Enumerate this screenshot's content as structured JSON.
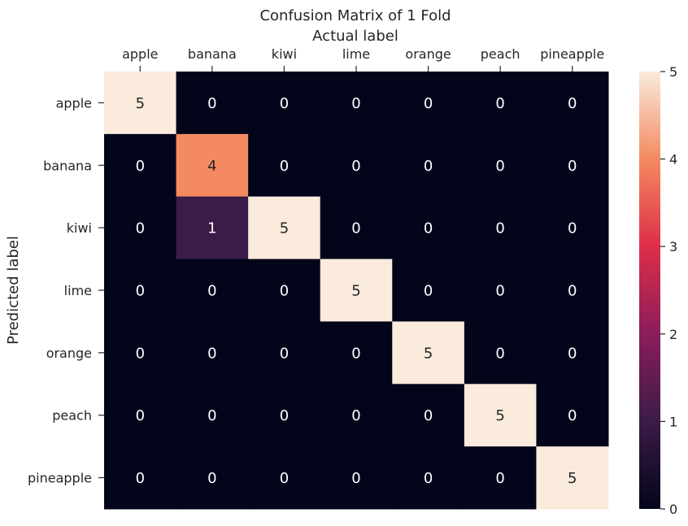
{
  "chart_data": {
    "type": "heatmap",
    "title": "Confusion Matrix of 1 Fold",
    "xlabel": "Actual label",
    "ylabel": "Predicted label",
    "x_categories": [
      "apple",
      "banana",
      "kiwi",
      "lime",
      "orange",
      "peach",
      "pineapple"
    ],
    "y_categories": [
      "apple",
      "banana",
      "kiwi",
      "lime",
      "orange",
      "peach",
      "pineapple"
    ],
    "values": [
      [
        5,
        0,
        0,
        0,
        0,
        0,
        0
      ],
      [
        0,
        4,
        0,
        0,
        0,
        0,
        0
      ],
      [
        0,
        1,
        5,
        0,
        0,
        0,
        0
      ],
      [
        0,
        0,
        0,
        5,
        0,
        0,
        0
      ],
      [
        0,
        0,
        0,
        0,
        5,
        0,
        0
      ],
      [
        0,
        0,
        0,
        0,
        0,
        5,
        0
      ],
      [
        0,
        0,
        0,
        0,
        0,
        0,
        5
      ]
    ],
    "vmin": 0,
    "vmax": 5,
    "colorbar_ticks": [
      0,
      1,
      2,
      3,
      4,
      5
    ],
    "colormap": "rocket",
    "annotated": true,
    "xaxis_position": "top"
  }
}
